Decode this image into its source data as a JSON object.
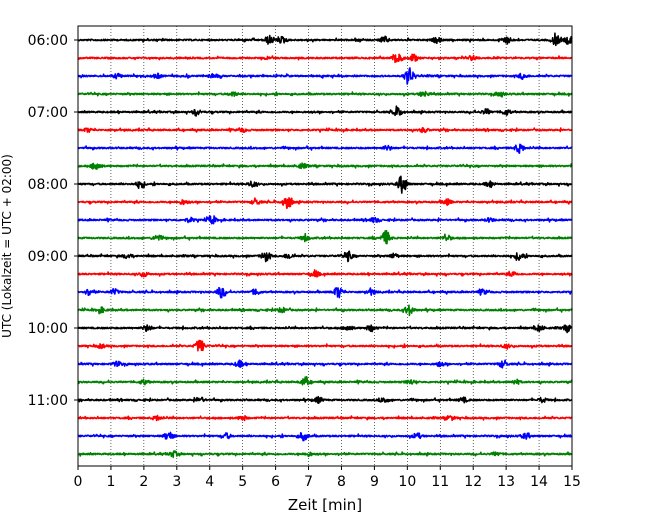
{
  "chart_data": {
    "type": "line",
    "title": "",
    "xlabel": "Zeit  [min]",
    "ylabel": "UTC (Lokalzeit = UTC + 02:00)",
    "xlim": [
      0,
      15
    ],
    "x_ticks": [
      0,
      1,
      2,
      3,
      4,
      5,
      6,
      7,
      8,
      9,
      10,
      11,
      12,
      13,
      14,
      15
    ],
    "y_ticks": [
      "06:00",
      "07:00",
      "08:00",
      "09:00",
      "10:00",
      "11:00"
    ],
    "row_interval_min": 15,
    "first_row": "06:00",
    "grid": "vertical-dotted",
    "colors": [
      "#000000",
      "#ff0000",
      "#0000ff",
      "#008000"
    ],
    "rows": [
      {
        "start": "06:00",
        "color": "#000000",
        "events": [
          [
            5.8,
            0.45
          ],
          [
            6.2,
            0.35
          ],
          [
            9.3,
            0.35
          ],
          [
            10.9,
            0.3
          ],
          [
            13.0,
            0.4
          ],
          [
            14.5,
            0.55
          ],
          [
            14.9,
            0.45
          ]
        ]
      },
      {
        "start": "06:15",
        "color": "#ff0000",
        "events": [
          [
            9.7,
            0.8
          ],
          [
            10.2,
            0.35
          ],
          [
            12.0,
            0.25
          ]
        ]
      },
      {
        "start": "06:30",
        "color": "#0000ff",
        "events": [
          [
            1.2,
            0.25
          ],
          [
            2.4,
            0.25
          ],
          [
            4.1,
            0.25
          ],
          [
            10.05,
            1.0
          ],
          [
            13.5,
            0.3
          ]
        ]
      },
      {
        "start": "06:45",
        "color": "#008000",
        "events": [
          [
            4.7,
            0.25
          ],
          [
            10.5,
            0.3
          ],
          [
            12.8,
            0.25
          ]
        ]
      },
      {
        "start": "07:00",
        "color": "#000000",
        "events": [
          [
            3.6,
            0.3
          ],
          [
            9.7,
            0.5
          ],
          [
            12.4,
            0.3
          ],
          [
            13.0,
            0.3
          ]
        ]
      },
      {
        "start": "07:15",
        "color": "#ff0000",
        "events": [
          [
            0.3,
            0.2
          ],
          [
            5.0,
            0.2
          ],
          [
            10.5,
            0.25
          ]
        ]
      },
      {
        "start": "07:30",
        "color": "#0000ff",
        "events": [
          [
            9.4,
            0.25
          ],
          [
            13.4,
            0.5
          ]
        ]
      },
      {
        "start": "07:45",
        "color": "#008000",
        "events": [
          [
            0.55,
            0.5
          ],
          [
            6.8,
            0.25
          ]
        ]
      },
      {
        "start": "08:00",
        "color": "#000000",
        "events": [
          [
            1.9,
            0.4
          ],
          [
            5.3,
            0.3
          ],
          [
            9.85,
            1.0
          ],
          [
            12.5,
            0.3
          ]
        ]
      },
      {
        "start": "08:15",
        "color": "#ff0000",
        "events": [
          [
            3.2,
            0.25
          ],
          [
            5.4,
            0.3
          ],
          [
            6.35,
            0.9
          ],
          [
            11.2,
            0.3
          ]
        ]
      },
      {
        "start": "08:30",
        "color": "#0000ff",
        "events": [
          [
            3.4,
            0.25
          ],
          [
            4.05,
            0.45
          ],
          [
            9.0,
            0.25
          ],
          [
            12.5,
            0.2
          ]
        ]
      },
      {
        "start": "08:45",
        "color": "#008000",
        "events": [
          [
            2.4,
            0.3
          ],
          [
            6.9,
            0.3
          ],
          [
            9.35,
            0.75
          ],
          [
            11.2,
            0.3
          ]
        ]
      },
      {
        "start": "09:00",
        "color": "#000000",
        "events": [
          [
            1.5,
            0.25
          ],
          [
            5.7,
            0.55
          ],
          [
            6.4,
            0.3
          ],
          [
            8.2,
            0.5
          ],
          [
            9.6,
            0.25
          ],
          [
            13.4,
            0.45
          ]
        ]
      },
      {
        "start": "09:15",
        "color": "#ff0000",
        "events": [
          [
            2.0,
            0.25
          ],
          [
            7.2,
            0.3
          ],
          [
            13.2,
            0.25
          ]
        ]
      },
      {
        "start": "09:30",
        "color": "#0000ff",
        "events": [
          [
            0.35,
            0.35
          ],
          [
            1.1,
            0.3
          ],
          [
            4.35,
            0.6
          ],
          [
            5.4,
            0.3
          ],
          [
            7.9,
            0.6
          ],
          [
            8.9,
            0.3
          ],
          [
            12.3,
            0.25
          ]
        ]
      },
      {
        "start": "09:45",
        "color": "#008000",
        "events": [
          [
            0.7,
            0.25
          ],
          [
            6.2,
            0.25
          ],
          [
            10.05,
            0.55
          ]
        ]
      },
      {
        "start": "10:00",
        "color": "#000000",
        "events": [
          [
            2.1,
            0.35
          ],
          [
            8.2,
            0.3
          ],
          [
            8.9,
            0.35
          ],
          [
            14.0,
            0.35
          ],
          [
            14.85,
            0.35
          ]
        ]
      },
      {
        "start": "10:15",
        "color": "#ff0000",
        "events": [
          [
            0.7,
            0.2
          ],
          [
            3.7,
            0.7
          ],
          [
            13.0,
            0.2
          ]
        ]
      },
      {
        "start": "10:30",
        "color": "#0000ff",
        "events": [
          [
            1.2,
            0.25
          ],
          [
            4.9,
            0.35
          ],
          [
            11.0,
            0.25
          ],
          [
            12.9,
            0.35
          ]
        ]
      },
      {
        "start": "10:45",
        "color": "#008000",
        "events": [
          [
            2.0,
            0.25
          ],
          [
            6.9,
            0.5
          ],
          [
            10.1,
            0.25
          ],
          [
            13.3,
            0.25
          ]
        ]
      },
      {
        "start": "11:00",
        "color": "#000000",
        "events": [
          [
            3.7,
            0.3
          ],
          [
            7.3,
            0.3
          ],
          [
            9.3,
            0.3
          ],
          [
            11.7,
            0.25
          ],
          [
            14.1,
            0.25
          ]
        ]
      },
      {
        "start": "11:15",
        "color": "#ff0000",
        "events": [
          [
            2.4,
            0.25
          ],
          [
            5.0,
            0.25
          ],
          [
            11.3,
            0.25
          ]
        ]
      },
      {
        "start": "11:30",
        "color": "#0000ff",
        "events": [
          [
            2.75,
            0.45
          ],
          [
            4.5,
            0.3
          ],
          [
            6.85,
            0.45
          ],
          [
            10.3,
            0.3
          ],
          [
            13.6,
            0.3
          ]
        ]
      },
      {
        "start": "11:45",
        "color": "#008000",
        "events": [
          [
            2.9,
            0.3
          ],
          [
            7.0,
            0.2
          ],
          [
            12.7,
            0.2
          ]
        ]
      }
    ]
  }
}
